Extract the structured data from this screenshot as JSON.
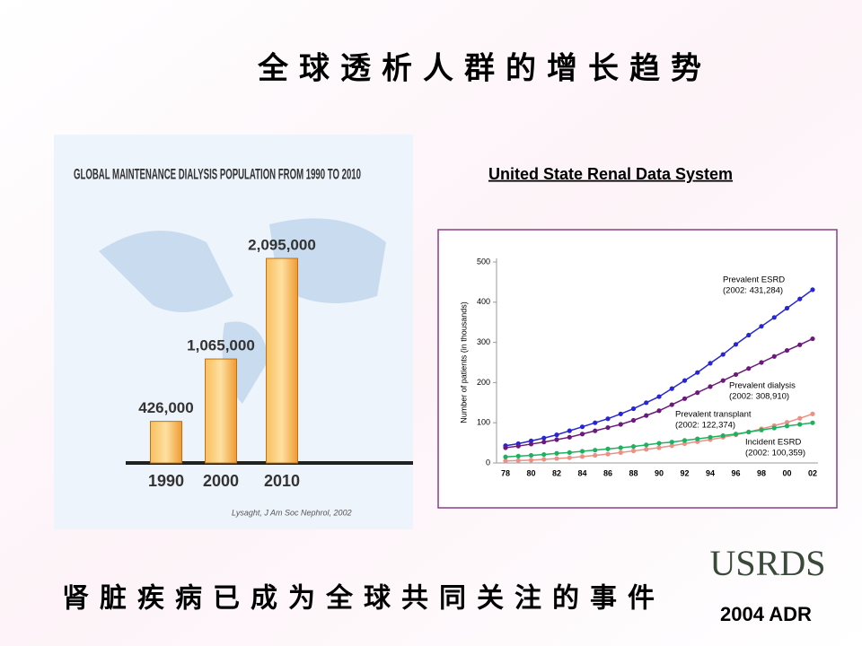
{
  "title": "全球透析人群的增长趋势",
  "subtitle": "United State Renal Data System",
  "footer": "肾脏疾病已成为全球共同关注的事件",
  "logo": {
    "name": "USRDS",
    "caption": "2004 ADR"
  },
  "chart_data": [
    {
      "type": "bar",
      "title": "GLOBAL MAINTENANCE DIALYSIS POPULATION FROM 1990 TO 2010",
      "categories": [
        "1990",
        "2000",
        "2010"
      ],
      "values": [
        426000,
        1065000,
        2095000
      ],
      "value_labels": [
        "426,000",
        "1,065,000",
        "2,095,000"
      ],
      "color": "#f5a623",
      "source": "Lysaght, J Am Soc Nephrol, 2002"
    },
    {
      "type": "line",
      "ylabel": "Number of patients (in thousands)",
      "categories": [
        "78",
        null,
        "80",
        null,
        "82",
        null,
        "84",
        null,
        "86",
        null,
        "88",
        null,
        "90",
        null,
        "92",
        null,
        "94",
        null,
        "96",
        null,
        "98",
        null,
        "00",
        null,
        "02"
      ],
      "ylim": [
        0,
        500
      ],
      "yticks": [
        0,
        100,
        200,
        300,
        400,
        500
      ],
      "series": [
        {
          "name": "Prevalent ESRD",
          "note": "(2002: 431,284)",
          "color": "#2626d4",
          "values": [
            43,
            48,
            55,
            62,
            70,
            80,
            90,
            100,
            110,
            122,
            135,
            150,
            165,
            185,
            205,
            225,
            248,
            270,
            295,
            318,
            340,
            362,
            385,
            408,
            431
          ]
        },
        {
          "name": "Prevalent dialysis",
          "note": "(2002: 308,910)",
          "color": "#6b1a7c",
          "values": [
            38,
            42,
            47,
            52,
            58,
            64,
            72,
            80,
            88,
            96,
            106,
            118,
            130,
            145,
            160,
            175,
            190,
            205,
            220,
            235,
            250,
            265,
            280,
            294,
            309
          ]
        },
        {
          "name": "Prevalent transplant",
          "note": "(2002: 122,374)",
          "color": "#ec9084",
          "values": [
            5,
            6,
            7,
            9,
            11,
            13,
            16,
            19,
            22,
            26,
            30,
            34,
            38,
            43,
            48,
            53,
            58,
            64,
            70,
            77,
            85,
            93,
            101,
            111,
            122
          ]
        },
        {
          "name": "Incident ESRD",
          "note": "(2002: 100,359)",
          "color": "#1fb060",
          "values": [
            15,
            17,
            19,
            21,
            24,
            26,
            29,
            32,
            35,
            38,
            41,
            45,
            49,
            52,
            56,
            60,
            64,
            68,
            72,
            77,
            82,
            87,
            92,
            96,
            100
          ]
        }
      ]
    }
  ]
}
